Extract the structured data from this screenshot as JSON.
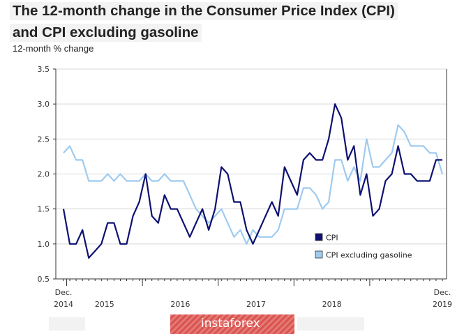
{
  "title_line1": "The 12-month change in the Consumer Price Index (CPI)",
  "title_line2": "and CPI excluding gasoline",
  "watermark": "instaforex",
  "chart_data": {
    "type": "line",
    "ylabel": "12-month % change",
    "ylim": [
      0.5,
      3.5
    ],
    "yticks": [
      "3.5",
      "3.0",
      "2.5",
      "2.0",
      "1.5",
      "1.0",
      "0.5"
    ],
    "ytick_values": [
      3.5,
      3.0,
      2.5,
      2.0,
      1.5,
      1.0,
      0.5
    ],
    "xlim": [
      0,
      60
    ],
    "xticks": [
      {
        "line1": "Dec.",
        "line2": "2014",
        "x": 0
      },
      {
        "line1": "",
        "line2": "2015",
        "x": 6.5
      },
      {
        "line1": "",
        "line2": "2016",
        "x": 18.5
      },
      {
        "line1": "",
        "line2": "2017",
        "x": 30.5
      },
      {
        "line1": "",
        "line2": "2018",
        "x": 42.5
      },
      {
        "line1": "Dec.",
        "line2": "2019",
        "x": 60
      }
    ],
    "grid": "horizontal",
    "legend_position": "bottom-right",
    "series": [
      {
        "name": "CPI",
        "color": "#0d1170",
        "values": [
          1.5,
          1.0,
          1.0,
          1.2,
          0.8,
          0.9,
          1.0,
          1.3,
          1.3,
          1.0,
          1.0,
          1.4,
          1.6,
          2.0,
          1.4,
          1.3,
          1.7,
          1.5,
          1.5,
          1.3,
          1.1,
          1.3,
          1.5,
          1.2,
          1.5,
          2.1,
          2.0,
          1.6,
          1.6,
          1.2,
          1.0,
          1.2,
          1.4,
          1.6,
          1.4,
          2.1,
          1.9,
          1.7,
          2.2,
          2.3,
          2.2,
          2.2,
          2.5,
          3.0,
          2.8,
          2.2,
          2.4,
          1.7,
          2.0,
          1.4,
          1.5,
          1.9,
          2.0,
          2.4,
          2.0,
          2.0,
          1.9,
          1.9,
          1.9,
          2.2,
          2.2
        ]
      },
      {
        "name": "CPI excluding gasoline",
        "color": "#9ecbf0",
        "values": [
          2.3,
          2.4,
          2.2,
          2.2,
          1.9,
          1.9,
          1.9,
          2.0,
          1.9,
          2.0,
          1.9,
          1.9,
          1.9,
          2.0,
          1.9,
          1.9,
          2.0,
          1.9,
          1.9,
          1.9,
          1.7,
          1.5,
          1.4,
          1.3,
          1.4,
          1.5,
          1.3,
          1.1,
          1.2,
          1.0,
          1.2,
          1.1,
          1.1,
          1.1,
          1.2,
          1.5,
          1.5,
          1.5,
          1.8,
          1.8,
          1.7,
          1.5,
          1.6,
          2.2,
          2.2,
          1.9,
          2.1,
          1.9,
          2.5,
          2.1,
          2.1,
          2.2,
          2.3,
          2.7,
          2.6,
          2.4,
          2.4,
          2.4,
          2.3,
          2.3,
          2.0
        ]
      }
    ]
  }
}
